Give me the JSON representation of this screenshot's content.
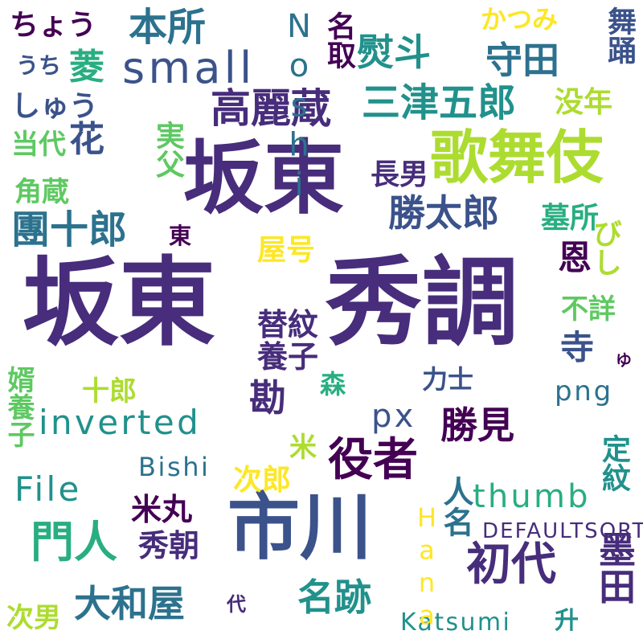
{
  "palette": {
    "purple": "#440154",
    "indigo": "#472d7b",
    "blue": "#3b528b",
    "steel": "#2c728e",
    "teal": "#21918c",
    "green": "#28ae80",
    "lime": "#5ec962",
    "yellowgreen": "#addc30",
    "yellow": "#fde725"
  },
  "words": [
    {
      "id": "w01",
      "text": "坂東"
    },
    {
      "id": "w02",
      "text": "秀調"
    },
    {
      "id": "w03",
      "text": "坂東"
    },
    {
      "id": "w04",
      "text": "市川"
    },
    {
      "id": "w05",
      "text": "歌舞伎"
    },
    {
      "id": "w06",
      "text": "役者"
    },
    {
      "id": "w07",
      "text": "初代"
    },
    {
      "id": "w08",
      "text": "門人"
    },
    {
      "id": "w09",
      "text": "高麗蔵"
    },
    {
      "id": "w10",
      "text": "三津五郎"
    },
    {
      "id": "w11",
      "text": "small"
    },
    {
      "id": "w12",
      "text": "本所"
    },
    {
      "id": "w13",
      "text": "團十郎"
    },
    {
      "id": "w14",
      "text": "勝太郎"
    },
    {
      "id": "w15",
      "text": "大和屋"
    },
    {
      "id": "w16",
      "text": "名跡"
    },
    {
      "id": "w17",
      "text": "勝見"
    },
    {
      "id": "w18",
      "text": "守田"
    },
    {
      "id": "w19",
      "text": "熨斗"
    },
    {
      "id": "w20",
      "text": "菱"
    },
    {
      "id": "w21",
      "text": "花"
    },
    {
      "id": "w22",
      "text": "inverted"
    },
    {
      "id": "w23",
      "text": "File"
    },
    {
      "id": "w24",
      "text": "墨田"
    },
    {
      "id": "w25",
      "text": "ちょう"
    },
    {
      "id": "w26",
      "text": "しゅう"
    },
    {
      "id": "w27",
      "text": "Noshi"
    },
    {
      "id": "w28",
      "text": "名取"
    },
    {
      "id": "w29",
      "text": "恩"
    },
    {
      "id": "w30",
      "text": "寺"
    },
    {
      "id": "w31",
      "text": "勘"
    },
    {
      "id": "w32",
      "text": "px"
    },
    {
      "id": "w33",
      "text": "thumb"
    },
    {
      "id": "w34",
      "text": "替紋"
    },
    {
      "id": "w35",
      "text": "養子"
    },
    {
      "id": "w36",
      "text": "秀朝"
    },
    {
      "id": "w37",
      "text": "米丸"
    },
    {
      "id": "w38",
      "text": "Bishi"
    },
    {
      "id": "w39",
      "text": "Katsumi"
    },
    {
      "id": "w40",
      "text": "DEFAULTSORT"
    },
    {
      "id": "w41",
      "text": "没年"
    },
    {
      "id": "w42",
      "text": "長男"
    },
    {
      "id": "w43",
      "text": "墓所"
    },
    {
      "id": "w44",
      "text": "かつみ"
    },
    {
      "id": "w45",
      "text": "舞踊"
    },
    {
      "id": "w46",
      "text": "うち"
    },
    {
      "id": "w47",
      "text": "当代"
    },
    {
      "id": "w48",
      "text": "実父"
    },
    {
      "id": "w49",
      "text": "角蔵"
    },
    {
      "id": "w50",
      "text": "東"
    },
    {
      "id": "w51",
      "text": "屋号"
    },
    {
      "id": "w52",
      "text": "びし"
    },
    {
      "id": "w53",
      "text": "不詳"
    },
    {
      "id": "w54",
      "text": "ゆ"
    },
    {
      "id": "w55",
      "text": "力士"
    },
    {
      "id": "w56",
      "text": "png"
    },
    {
      "id": "w57",
      "text": "十郎"
    },
    {
      "id": "w58",
      "text": "森"
    },
    {
      "id": "w59",
      "text": "婿養子"
    },
    {
      "id": "w60",
      "text": "米"
    },
    {
      "id": "w61",
      "text": "次郎"
    },
    {
      "id": "w62",
      "text": "定紋"
    },
    {
      "id": "w63",
      "text": "人名"
    },
    {
      "id": "w64",
      "text": "Hana"
    },
    {
      "id": "w65",
      "text": "代"
    },
    {
      "id": "w66",
      "text": "次男"
    },
    {
      "id": "w67",
      "text": "升"
    }
  ]
}
